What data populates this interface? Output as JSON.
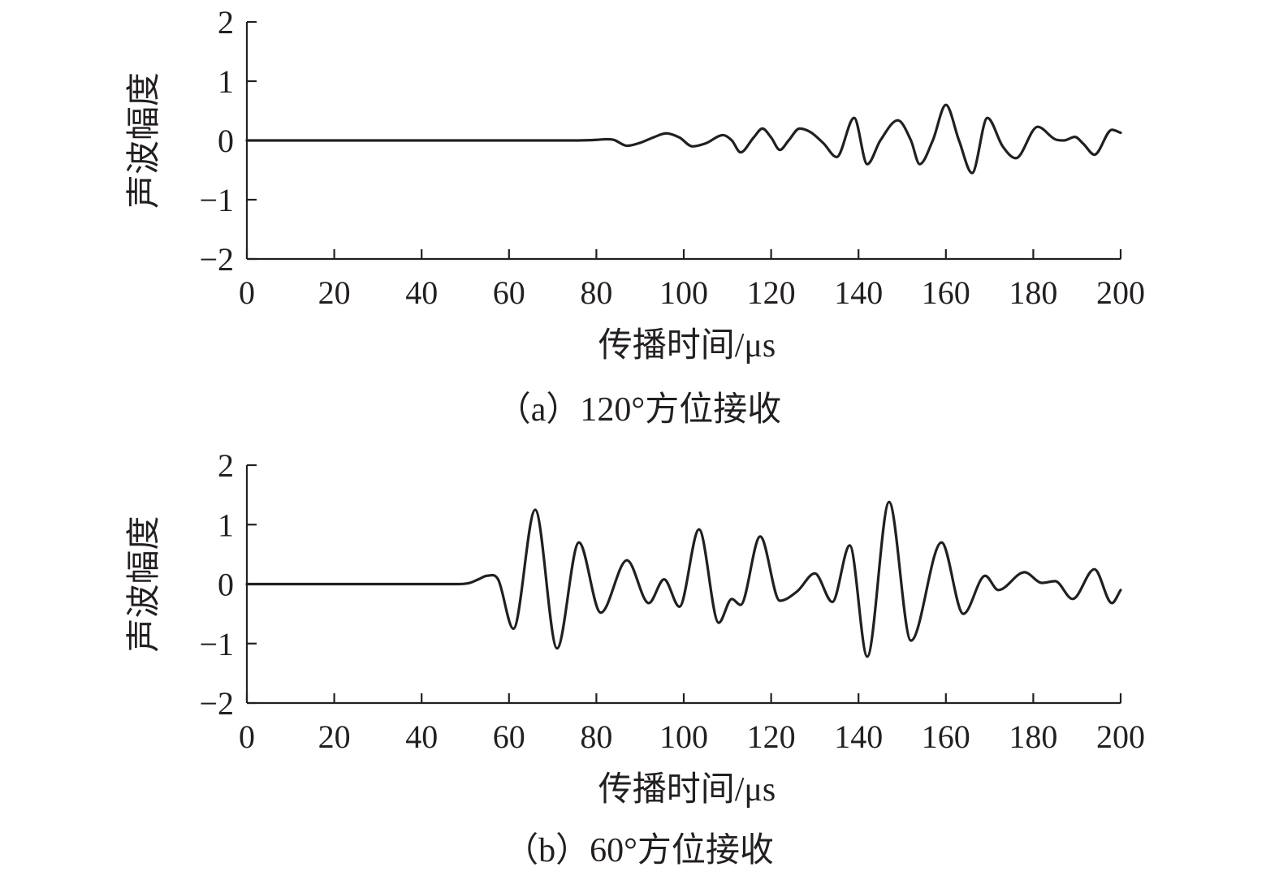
{
  "chart_data": [
    {
      "type": "line",
      "caption": "（a）120°方位接收",
      "xlabel": "传播时间/μs",
      "ylabel": "声波幅度",
      "xlim": [
        0,
        200
      ],
      "ylim": [
        -2,
        2
      ],
      "xticks": [
        0,
        20,
        40,
        60,
        80,
        100,
        120,
        140,
        160,
        180,
        200
      ],
      "yticks": [
        2,
        1,
        0,
        -1,
        -2
      ],
      "ytick_labels": [
        "2",
        "1",
        "0",
        "−1",
        "−2"
      ],
      "series": [
        {
          "x": [
            0,
            76,
            80,
            82,
            84,
            87,
            90,
            93,
            96,
            99,
            102,
            105,
            109,
            111,
            113,
            116,
            118,
            120,
            122,
            124,
            126.5,
            129,
            132,
            135,
            139,
            142,
            145,
            149,
            152,
            154,
            157,
            160,
            163,
            166,
            169.5,
            173,
            176,
            181,
            185,
            187,
            189.5,
            191.5,
            194,
            198,
            200
          ],
          "y": [
            0,
            0,
            0.01,
            0.02,
            0.01,
            -0.09,
            -0.04,
            0.05,
            0.12,
            0.05,
            -0.1,
            -0.05,
            0.09,
            0.0,
            -0.2,
            0.05,
            0.2,
            0.05,
            -0.16,
            0.0,
            0.2,
            0.14,
            -0.05,
            -0.28,
            0.38,
            -0.4,
            0.0,
            0.34,
            0.0,
            -0.4,
            0.0,
            0.6,
            0.0,
            -0.55,
            0.38,
            -0.1,
            -0.3,
            0.23,
            0.02,
            0.0,
            0.06,
            -0.06,
            -0.24,
            0.18,
            0.13
          ]
        }
      ]
    },
    {
      "type": "line",
      "caption": "（b）60°方位接收",
      "xlabel": "传播时间/μs",
      "ylabel": "声波幅度",
      "xlim": [
        0,
        200
      ],
      "ylim": [
        -2,
        2
      ],
      "xticks": [
        0,
        20,
        40,
        60,
        80,
        100,
        120,
        140,
        160,
        180,
        200
      ],
      "yticks": [
        2,
        1,
        0,
        -1,
        -2
      ],
      "ytick_labels": [
        "2",
        "1",
        "0",
        "−1",
        "−2"
      ],
      "series": [
        {
          "x": [
            0,
            48,
            51,
            53,
            55,
            57.5,
            61,
            66,
            71,
            76,
            81,
            87,
            92,
            95.5,
            99,
            103.5,
            108,
            111,
            113,
            117.5,
            122,
            126,
            130,
            134,
            138,
            142,
            147,
            152,
            159,
            164,
            169,
            172,
            178,
            182,
            185,
            189,
            194,
            198,
            200
          ],
          "y": [
            0,
            0,
            0.02,
            0.08,
            0.14,
            0.08,
            -0.75,
            1.25,
            -1.08,
            0.7,
            -0.48,
            0.4,
            -0.32,
            0.08,
            -0.38,
            0.92,
            -0.65,
            -0.25,
            -0.35,
            0.8,
            -0.28,
            -0.12,
            0.18,
            -0.3,
            0.65,
            -1.22,
            1.38,
            -0.95,
            0.7,
            -0.5,
            0.14,
            -0.1,
            0.2,
            0.02,
            0.05,
            -0.25,
            0.25,
            -0.32,
            -0.1
          ]
        }
      ]
    }
  ]
}
